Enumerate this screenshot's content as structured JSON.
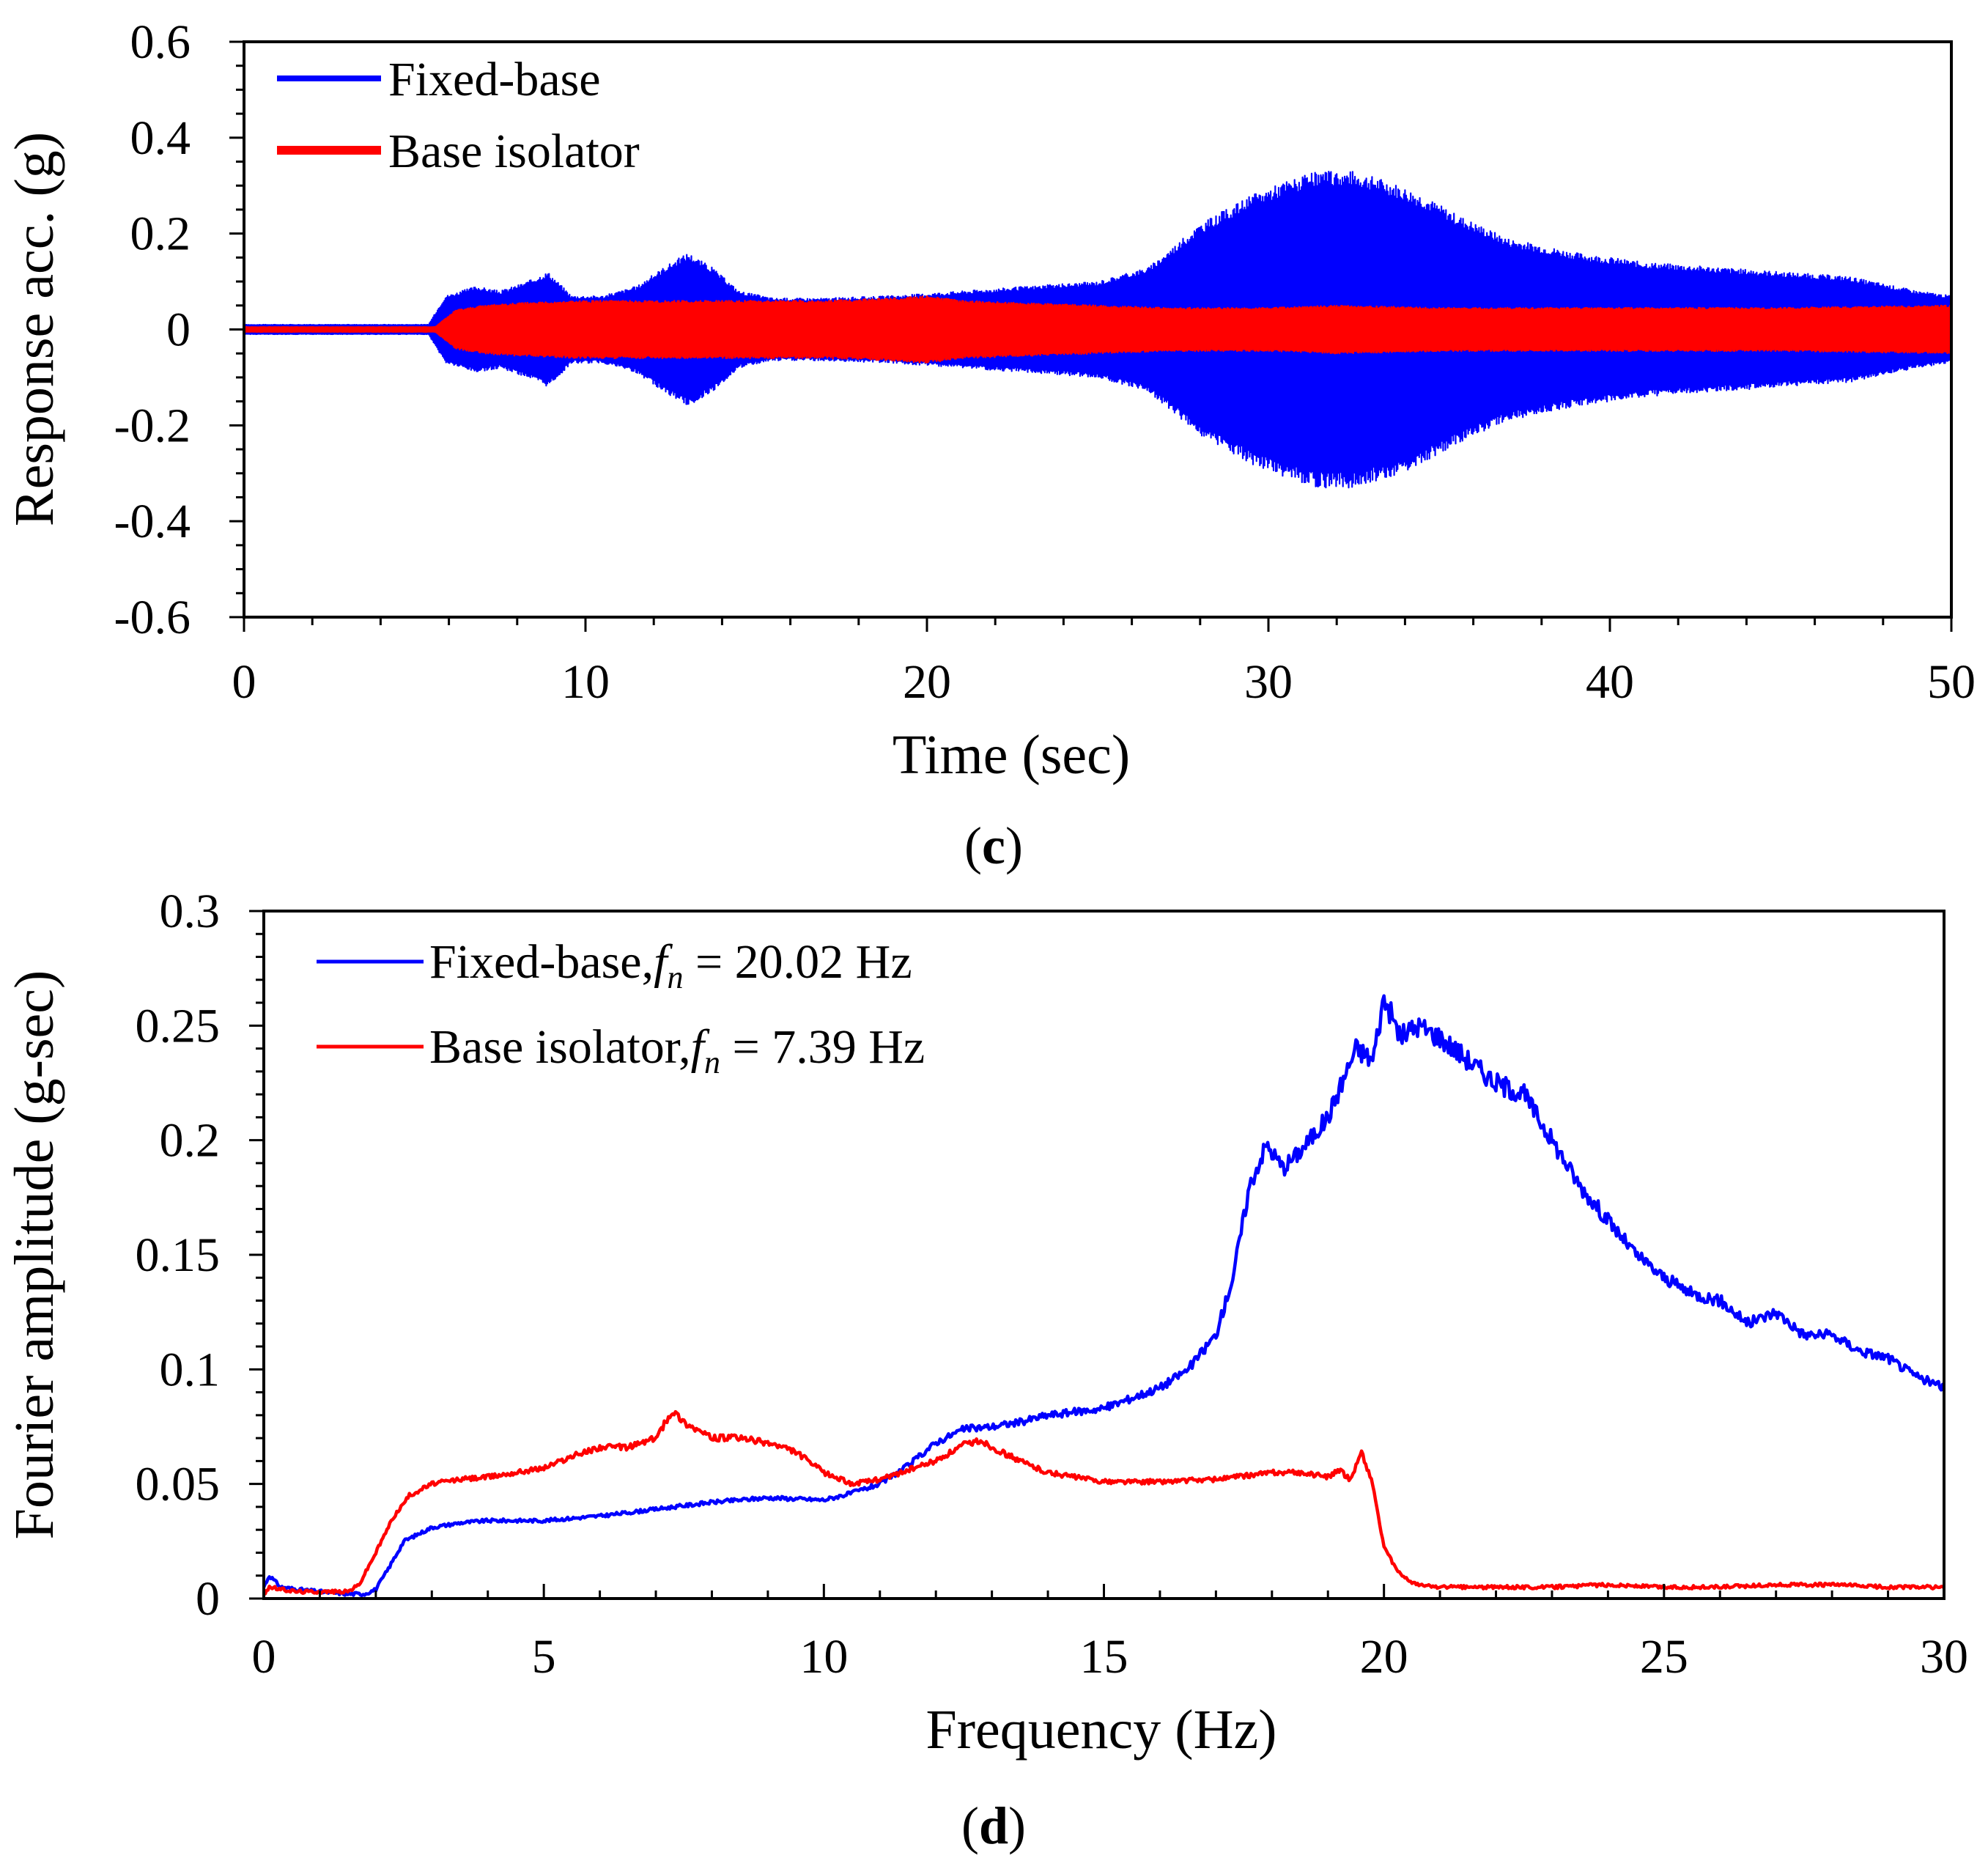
{
  "chart_data": [
    {
      "type": "line",
      "panel_label": "c",
      "title": "",
      "xlabel": "Time (sec)",
      "ylabel": "Response acc. (g)",
      "xlim": [
        0,
        50
      ],
      "ylim": [
        -0.6,
        0.6
      ],
      "xticks": [
        0,
        10,
        20,
        30,
        40,
        50
      ],
      "xtick_labels": [
        "0",
        "10",
        "20",
        "30",
        "40",
        "50"
      ],
      "yticks": [
        -0.6,
        -0.4,
        -0.2,
        0,
        0.2,
        0.4,
        0.6
      ],
      "ytick_labels": [
        "-0.6",
        "-0.4",
        "-0.2",
        "0",
        "0.2",
        "0.4",
        "0.6"
      ],
      "grid": false,
      "legend_position": "top-left",
      "series": [
        {
          "name": "Fixed-base",
          "color": "#0000ff",
          "style": "oscillating envelope",
          "envelope_time": [
            0,
            5.4,
            5.9,
            6.8,
            7.5,
            8.3,
            8.9,
            9.6,
            10.5,
            11.5,
            12.3,
            13.0,
            13.7,
            14.5,
            15.5,
            17,
            19,
            21,
            23,
            25,
            26.5,
            28,
            29.5,
            30.5,
            31.5,
            32,
            32.5,
            33.5,
            34.5,
            35.5,
            37,
            39,
            41,
            43,
            45,
            47,
            49,
            50
          ],
          "envelope_amplitude": [
            0.01,
            0.01,
            0.07,
            0.09,
            0.08,
            0.1,
            0.12,
            0.07,
            0.07,
            0.09,
            0.13,
            0.16,
            0.13,
            0.08,
            0.065,
            0.065,
            0.07,
            0.08,
            0.09,
            0.1,
            0.13,
            0.22,
            0.28,
            0.31,
            0.33,
            0.33,
            0.33,
            0.31,
            0.28,
            0.24,
            0.19,
            0.16,
            0.14,
            0.13,
            0.12,
            0.11,
            0.08,
            0.07
          ]
        },
        {
          "name": "Base isolator",
          "color": "#ff0000",
          "style": "oscillating envelope",
          "envelope_time": [
            0,
            5.6,
            6.2,
            7,
            8,
            10,
            14,
            17,
            19,
            20,
            21,
            23,
            25,
            27,
            30,
            32,
            35,
            40,
            45,
            50
          ],
          "envelope_amplitude": [
            0.005,
            0.005,
            0.04,
            0.05,
            0.055,
            0.06,
            0.06,
            0.06,
            0.065,
            0.07,
            0.06,
            0.055,
            0.05,
            0.045,
            0.045,
            0.05,
            0.045,
            0.045,
            0.045,
            0.05
          ]
        }
      ]
    },
    {
      "type": "line",
      "panel_label": "d",
      "title": "",
      "xlabel": "Frequency (Hz)",
      "ylabel": "Fourier amplitude (g-sec)",
      "xlim": [
        0,
        30
      ],
      "ylim": [
        0,
        0.3
      ],
      "xticks": [
        0,
        5,
        10,
        15,
        20,
        25,
        30
      ],
      "xtick_labels": [
        "0",
        "5",
        "10",
        "15",
        "20",
        "25",
        "30"
      ],
      "yticks": [
        0,
        0.05,
        0.1,
        0.15,
        0.2,
        0.25,
        0.3
      ],
      "ytick_labels": [
        "0",
        "0.05",
        "0.1",
        "0.15",
        "0.2",
        "0.25",
        "0.3"
      ],
      "grid": false,
      "legend_position": "top-left",
      "series": [
        {
          "name": "Fixed-base",
          "legend_prefix": "Fixed-base,",
          "legend_fn_symbol": "f",
          "legend_fn_subscript": "n",
          "legend_fn_value": " = 20.02 Hz",
          "natural_frequency_hz": 20.02,
          "color": "#0000ff",
          "x": [
            0,
            0.1,
            0.3,
            0.6,
            1.0,
            1.5,
            1.8,
            2.0,
            2.2,
            2.5,
            3.0,
            3.5,
            4.0,
            5.0,
            6.0,
            7.0,
            8.0,
            9.0,
            10.0,
            10.5,
            11.0,
            11.5,
            12.0,
            12.5,
            13.0,
            13.5,
            14.0,
            15.0,
            16.0,
            16.5,
            17.0,
            17.3,
            17.6,
            17.9,
            18.2,
            18.5,
            19.0,
            19.5,
            19.8,
            20.0,
            20.3,
            20.6,
            21.0,
            21.5,
            22.0,
            22.5,
            23.0,
            23.5,
            24.0,
            24.5,
            25.0,
            25.5,
            26.0,
            26.5,
            27.0,
            27.5,
            28.0,
            28.5,
            29.0,
            29.5,
            30.0
          ],
          "y": [
            0.005,
            0.01,
            0.005,
            0.004,
            0.003,
            0.002,
            0.002,
            0.004,
            0.012,
            0.025,
            0.031,
            0.033,
            0.034,
            0.034,
            0.036,
            0.039,
            0.042,
            0.044,
            0.043,
            0.046,
            0.05,
            0.058,
            0.068,
            0.074,
            0.075,
            0.077,
            0.08,
            0.083,
            0.092,
            0.1,
            0.115,
            0.14,
            0.18,
            0.198,
            0.188,
            0.195,
            0.21,
            0.24,
            0.235,
            0.262,
            0.245,
            0.25,
            0.245,
            0.235,
            0.225,
            0.22,
            0.2,
            0.18,
            0.165,
            0.15,
            0.14,
            0.133,
            0.13,
            0.12,
            0.125,
            0.115,
            0.115,
            0.108,
            0.105,
            0.097,
            0.092
          ]
        },
        {
          "name": "Base isolator",
          "legend_prefix": "Base isolator,",
          "legend_fn_symbol": "f",
          "legend_fn_subscript": "n",
          "legend_fn_value": " = 7.39 Hz",
          "natural_frequency_hz": 7.39,
          "color": "#ff0000",
          "x": [
            0,
            0.1,
            0.3,
            0.6,
            1.0,
            1.5,
            1.7,
            2.0,
            2.3,
            2.6,
            3.0,
            3.5,
            4.0,
            5.0,
            5.5,
            6.0,
            6.5,
            7.0,
            7.3,
            7.5,
            8.0,
            8.5,
            9.0,
            9.5,
            10.0,
            10.5,
            11.0,
            11.5,
            12.0,
            12.5,
            12.8,
            13.0,
            13.5,
            14.0,
            15.0,
            16.0,
            17.0,
            18.0,
            18.5,
            19.0,
            19.2,
            19.4,
            19.6,
            19.8,
            20.0,
            20.3,
            20.6,
            21.0,
            22.0,
            23.0,
            24.0,
            25.0,
            26.0,
            27.0,
            28.0,
            29.0,
            30.0
          ],
          "y": [
            0.002,
            0.005,
            0.004,
            0.003,
            0.003,
            0.003,
            0.006,
            0.02,
            0.035,
            0.045,
            0.05,
            0.052,
            0.053,
            0.057,
            0.062,
            0.066,
            0.066,
            0.07,
            0.082,
            0.077,
            0.07,
            0.07,
            0.068,
            0.064,
            0.055,
            0.05,
            0.052,
            0.056,
            0.06,
            0.067,
            0.069,
            0.066,
            0.06,
            0.055,
            0.051,
            0.051,
            0.052,
            0.055,
            0.055,
            0.053,
            0.056,
            0.052,
            0.064,
            0.05,
            0.022,
            0.01,
            0.006,
            0.005,
            0.005,
            0.005,
            0.006,
            0.005,
            0.005,
            0.006,
            0.006,
            0.005,
            0.005
          ]
        }
      ]
    }
  ]
}
